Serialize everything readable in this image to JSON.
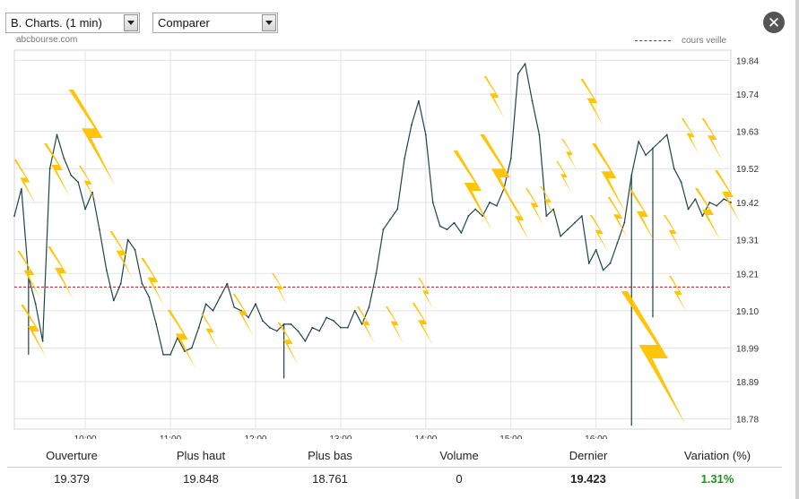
{
  "controls": {
    "chart_select": "B. Charts. (1 min)",
    "compare_select": "Comparer",
    "close_symbol": "✕"
  },
  "source": "abcbourse.com",
  "legend": {
    "previous_close": "cours veille"
  },
  "colors": {
    "price_line": "#1d4548",
    "previous_close": "#c01818",
    "bolt": "#ffc200",
    "variation": "#1f8f1f"
  },
  "icons": [
    "chevron-down-icon",
    "close-icon",
    "lightning-bolt-icon"
  ],
  "stats": {
    "headers": [
      "Ouverture",
      "Plus haut",
      "Plus bas",
      "Volume",
      "Dernier",
      "Variation (%)"
    ],
    "values": [
      "19.379",
      "19.848",
      "18.761",
      "0",
      "19.423",
      "1.31%"
    ]
  },
  "chart_data": {
    "type": "line",
    "x_ticks": [
      "10:00",
      "11:00",
      "12:00",
      "13:00",
      "14:00",
      "15:00",
      "16:00"
    ],
    "y_ticks": [
      "19.84",
      "19.74",
      "19.63",
      "19.52",
      "19.42",
      "19.31",
      "19.21",
      "19.10",
      "18.99",
      "18.89",
      "18.78"
    ],
    "ylim": [
      18.75,
      19.87
    ],
    "xlim": [
      "09:10",
      "17:35"
    ],
    "grid": true,
    "previous_close": 19.17,
    "x": [
      "09:10",
      "09:15",
      "09:20",
      "09:25",
      "09:30",
      "09:35",
      "09:40",
      "09:45",
      "09:50",
      "09:55",
      "10:00",
      "10:05",
      "10:10",
      "10:15",
      "10:20",
      "10:25",
      "10:30",
      "10:35",
      "10:40",
      "10:45",
      "10:50",
      "10:55",
      "11:00",
      "11:05",
      "11:10",
      "11:15",
      "11:20",
      "11:25",
      "11:30",
      "11:35",
      "11:40",
      "11:45",
      "11:50",
      "11:55",
      "12:00",
      "12:05",
      "12:10",
      "12:15",
      "12:20",
      "12:25",
      "12:30",
      "12:35",
      "12:40",
      "12:45",
      "12:50",
      "12:55",
      "13:00",
      "13:05",
      "13:10",
      "13:15",
      "13:20",
      "13:25",
      "13:30",
      "13:35",
      "13:40",
      "13:45",
      "13:50",
      "13:55",
      "14:00",
      "14:05",
      "14:10",
      "14:15",
      "14:20",
      "14:25",
      "14:30",
      "14:35",
      "14:40",
      "14:45",
      "14:50",
      "14:55",
      "15:00",
      "15:05",
      "15:10",
      "15:15",
      "15:20",
      "15:25",
      "15:30",
      "15:35",
      "15:40",
      "15:45",
      "15:50",
      "15:55",
      "16:00",
      "16:05",
      "16:10",
      "16:15",
      "16:20",
      "16:25",
      "16:30",
      "16:35",
      "16:40",
      "16:45",
      "16:50",
      "16:55",
      "17:00",
      "17:05",
      "17:10",
      "17:15",
      "17:20",
      "17:25",
      "17:30",
      "17:35"
    ],
    "y": [
      19.38,
      19.46,
      19.2,
      19.12,
      19.01,
      19.52,
      19.62,
      19.55,
      19.5,
      19.48,
      19.4,
      19.45,
      19.34,
      19.22,
      19.13,
      19.18,
      19.31,
      19.28,
      19.18,
      19.14,
      19.06,
      18.97,
      18.97,
      19.02,
      18.98,
      18.99,
      19.05,
      19.12,
      19.1,
      19.14,
      19.18,
      19.11,
      19.1,
      19.08,
      19.12,
      19.07,
      19.05,
      19.04,
      19.06,
      19.06,
      19.04,
      19.01,
      19.05,
      19.04,
      19.08,
      19.07,
      19.05,
      19.05,
      19.1,
      19.06,
      19.11,
      19.21,
      19.34,
      19.37,
      19.4,
      19.55,
      19.65,
      19.72,
      19.62,
      19.42,
      19.35,
      19.34,
      19.36,
      19.33,
      19.38,
      19.4,
      19.38,
      19.42,
      19.41,
      19.46,
      19.55,
      19.8,
      19.83,
      19.72,
      19.62,
      19.38,
      19.4,
      19.32,
      19.34,
      19.36,
      19.38,
      19.24,
      19.28,
      19.22,
      19.24,
      19.3,
      19.36,
      19.5,
      19.6,
      19.56,
      19.58,
      19.6,
      19.62,
      19.52,
      19.48,
      19.4,
      19.43,
      19.38,
      19.42,
      19.41,
      19.43,
      19.42
    ],
    "lows": [
      {
        "x": "09:20",
        "y": 18.97
      },
      {
        "x": "12:20",
        "y": 18.9
      },
      {
        "x": "16:25",
        "y": 18.76
      },
      {
        "x": "16:40",
        "y": 19.08
      }
    ]
  }
}
